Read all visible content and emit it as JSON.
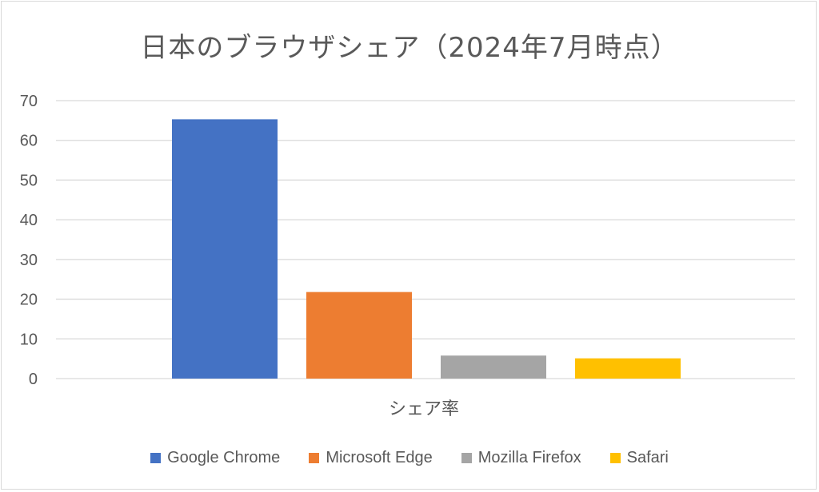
{
  "chart_data": {
    "type": "bar",
    "title": "日本のブラウザシェア（2024年7月時点）",
    "xlabel": "シェア率",
    "ylabel": "",
    "ylim": [
      0,
      70
    ],
    "yticks": [
      0,
      10,
      20,
      30,
      40,
      50,
      60,
      70
    ],
    "grid": true,
    "legend_position": "bottom",
    "categories": [
      "シェア率"
    ],
    "series": [
      {
        "name": "Google Chrome",
        "values": [
          65.3
        ],
        "color": "#4472C4"
      },
      {
        "name": "Microsoft Edge",
        "values": [
          21.8
        ],
        "color": "#ED7D31"
      },
      {
        "name": "Mozilla Firefox",
        "values": [
          5.8
        ],
        "color": "#A5A5A5"
      },
      {
        "name": "Safari",
        "values": [
          5.1
        ],
        "color": "#FFC000"
      }
    ]
  },
  "legend": {
    "labels": [
      "Google Chrome",
      "Microsoft Edge",
      "Mozilla Firefox",
      "Safari"
    ]
  }
}
